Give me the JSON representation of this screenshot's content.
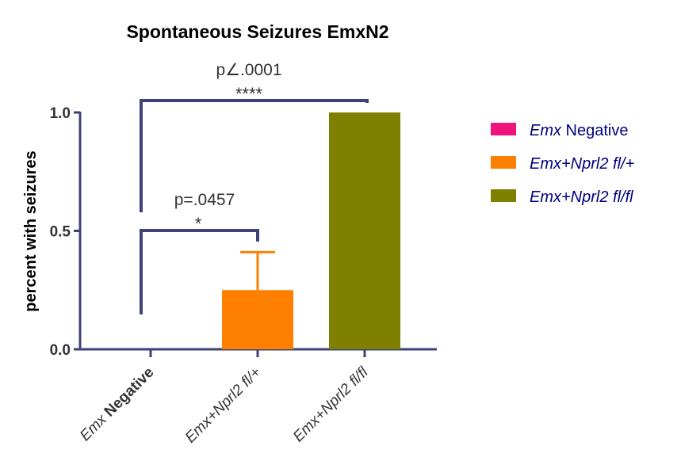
{
  "chart_data": {
    "type": "bar",
    "title": "Spontaneous Seizures EmxN2",
    "ylabel": "percent with seizures",
    "xlabel": "",
    "ylim": [
      0,
      1.0
    ],
    "yticks": [
      "0.0",
      "0.5",
      "1.0"
    ],
    "categories": [
      {
        "italic": "Emx",
        "bold": " Negative"
      },
      {
        "italic": "Emx+Nprl2 fl/+",
        "bold": ""
      },
      {
        "italic": "Emx+Nprl2 fl/fl",
        "bold": ""
      }
    ],
    "values": [
      0,
      0.25,
      1.0
    ],
    "error_upper": [
      null,
      0.41,
      null
    ],
    "colors": [
      "#f0147a",
      "#ff8000",
      "#808000"
    ],
    "axis_color": "#3f4279",
    "legend": {
      "placement": "right",
      "text_color": "#000080",
      "entries": [
        {
          "italic": "Emx",
          "plain": " Negative"
        },
        {
          "italic": "Emx+Nprl2 fl/+",
          "plain": ""
        },
        {
          "italic": "Emx+Nprl2 fl/fl",
          "plain": ""
        }
      ]
    },
    "annotations": [
      {
        "from": 0,
        "to": 1,
        "stars": "*",
        "p": "p=.0457"
      },
      {
        "from": 0,
        "to": 2,
        "stars": "****",
        "p": "p∠.0001"
      }
    ]
  }
}
